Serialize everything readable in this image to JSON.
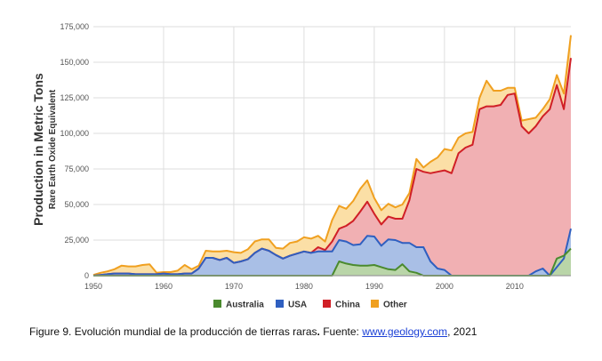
{
  "chart_data": {
    "type": "area",
    "stacked": true,
    "ylabel": "Production in Metric Tons",
    "ylabel_sub": "Rare Earth Oxide Equivalent",
    "xlim": [
      1950,
      2018
    ],
    "ylim": [
      0,
      175000
    ],
    "xticks": [
      1950,
      1960,
      1970,
      1980,
      1990,
      2000,
      2010
    ],
    "yticks": [
      0,
      25000,
      50000,
      75000,
      100000,
      125000,
      150000,
      175000
    ],
    "ytick_labels": [
      "0",
      "25,000",
      "50,000",
      "75,000",
      "100,000",
      "125,000",
      "150,000",
      "175,000"
    ],
    "grid": true,
    "legend_position": "bottom",
    "x": [
      1950,
      1951,
      1952,
      1953,
      1954,
      1955,
      1956,
      1957,
      1958,
      1959,
      1960,
      1961,
      1962,
      1963,
      1964,
      1965,
      1966,
      1967,
      1968,
      1969,
      1970,
      1971,
      1972,
      1973,
      1974,
      1975,
      1976,
      1977,
      1978,
      1979,
      1980,
      1981,
      1982,
      1983,
      1984,
      1985,
      1986,
      1987,
      1988,
      1989,
      1990,
      1991,
      1992,
      1993,
      1994,
      1995,
      1996,
      1997,
      1998,
      1999,
      2000,
      2001,
      2002,
      2003,
      2004,
      2005,
      2006,
      2007,
      2008,
      2009,
      2010,
      2011,
      2012,
      2013,
      2014,
      2015,
      2016,
      2017,
      2018
    ],
    "series": [
      {
        "name": "Australia",
        "color": "#4a8a2e",
        "fill": "#b9d5a8",
        "values": [
          0,
          0,
          0,
          0,
          0,
          0,
          0,
          0,
          0,
          0,
          0,
          0,
          0,
          0,
          0,
          0,
          0,
          0,
          0,
          0,
          0,
          0,
          0,
          0,
          0,
          0,
          0,
          0,
          0,
          0,
          0,
          0,
          0,
          0,
          0,
          10000,
          8500,
          7500,
          7000,
          7000,
          7500,
          6000,
          4500,
          4000,
          8000,
          3000,
          2000,
          0,
          0,
          0,
          0,
          0,
          0,
          0,
          0,
          0,
          0,
          0,
          0,
          0,
          0,
          0,
          0,
          0,
          0,
          0,
          12000,
          14000,
          19000
        ]
      },
      {
        "name": "USA",
        "color": "#2f5fc0",
        "fill": "#a9bfe6",
        "values": [
          0,
          500,
          1000,
          1500,
          1500,
          1500,
          1000,
          1000,
          1000,
          1000,
          1500,
          1000,
          1000,
          1500,
          1500,
          5000,
          12500,
          12500,
          11000,
          12500,
          9000,
          10000,
          11500,
          16000,
          19000,
          17500,
          14500,
          12000,
          14000,
          15500,
          17000,
          16000,
          17000,
          17000,
          17000,
          15000,
          15500,
          14000,
          15000,
          21000,
          20000,
          15000,
          21000,
          21000,
          15000,
          20000,
          18000,
          20000,
          10000,
          5000,
          4000,
          0,
          0,
          0,
          0,
          0,
          0,
          0,
          0,
          0,
          0,
          0,
          0,
          3000,
          5000,
          0,
          -6000,
          -2000,
          14000
        ]
      },
      {
        "name": "China",
        "color": "#d01f26",
        "fill": "#f1b0b3",
        "values": [
          0,
          0,
          0,
          0,
          0,
          0,
          0,
          0,
          0,
          0,
          0,
          0,
          0,
          0,
          0,
          0,
          0,
          0,
          0,
          0,
          0,
          0,
          0,
          0,
          0,
          0,
          0,
          0,
          0,
          0,
          0,
          0,
          3000,
          1000,
          7000,
          8000,
          11000,
          17000,
          23000,
          24000,
          16000,
          15000,
          16000,
          15000,
          17000,
          30000,
          55000,
          53000,
          62000,
          68000,
          70000,
          72000,
          86000,
          90000,
          92000,
          117000,
          119000,
          119000,
          120000,
          127000,
          128000,
          105000,
          100000,
          102000,
          107000,
          117000,
          128000,
          105000,
          120000
        ]
      },
      {
        "name": "Other",
        "color": "#f0a020",
        "fill": "#fbdfa6",
        "values": [
          500,
          1500,
          2000,
          3000,
          5500,
          5000,
          5500,
          6500,
          7000,
          1000,
          1000,
          1500,
          2500,
          6000,
          3000,
          2000,
          5000,
          4500,
          6000,
          5000,
          7500,
          6000,
          7000,
          8000,
          6500,
          8000,
          5000,
          7000,
          9000,
          8500,
          10000,
          10000,
          8000,
          6000,
          15000,
          16000,
          12000,
          14000,
          16000,
          15000,
          11000,
          10000,
          9000,
          8000,
          10000,
          5000,
          7000,
          3000,
          8000,
          10000,
          15000,
          16000,
          11000,
          10000,
          9000,
          8000,
          18000,
          11000,
          10000,
          5000,
          4000,
          4000,
          10000,
          6000,
          5000,
          7000,
          7000,
          11000,
          16000
        ]
      }
    ]
  },
  "caption": {
    "prefix": "Figure 9. Evolución mundial de la producción de tierras raras",
    "bold_dot": ".",
    "source_label": " Fuente: ",
    "link_text": "www.geology.com",
    "suffix": ", 2021"
  }
}
